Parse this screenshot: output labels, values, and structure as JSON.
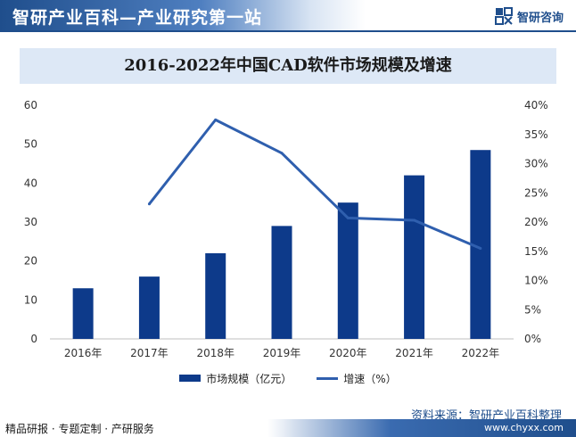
{
  "header": {
    "title": "智研产业百科—产业研究第一站",
    "brand": "智研咨询"
  },
  "source": "资料来源：智研产业百科整理",
  "footer": {
    "tagline": "精品研报 · 专题定制 · 产研服务",
    "url": "www.chyxx.com"
  },
  "colors": {
    "bar": "#0d3a8a",
    "line": "#2f5fae",
    "accent": "#1f4e8c"
  },
  "chart_data": {
    "type": "bar",
    "title": "2016-2022年中国CAD软件市场规模及增速",
    "categories": [
      "2016年",
      "2017年",
      "2018年",
      "2019年",
      "2020年",
      "2021年",
      "2022年"
    ],
    "series": [
      {
        "name": "市场规模（亿元）",
        "type": "bar",
        "axis": "left",
        "values": [
          13,
          16,
          22,
          29,
          35,
          42,
          48.5
        ]
      },
      {
        "name": "增速（%）",
        "type": "line",
        "axis": "right",
        "values": [
          null,
          23.1,
          37.5,
          31.8,
          20.7,
          20.3,
          15.5
        ]
      }
    ],
    "y_left": {
      "ylim": [
        0,
        60
      ],
      "ticks": [
        "0",
        "10",
        "20",
        "30",
        "40",
        "50",
        "60"
      ]
    },
    "y_right": {
      "ylim": [
        0,
        40
      ],
      "ticks": [
        "0%",
        "5%",
        "10%",
        "15%",
        "20%",
        "25%",
        "30%",
        "35%",
        "40%"
      ]
    },
    "grid": false,
    "legend": "bottom"
  }
}
